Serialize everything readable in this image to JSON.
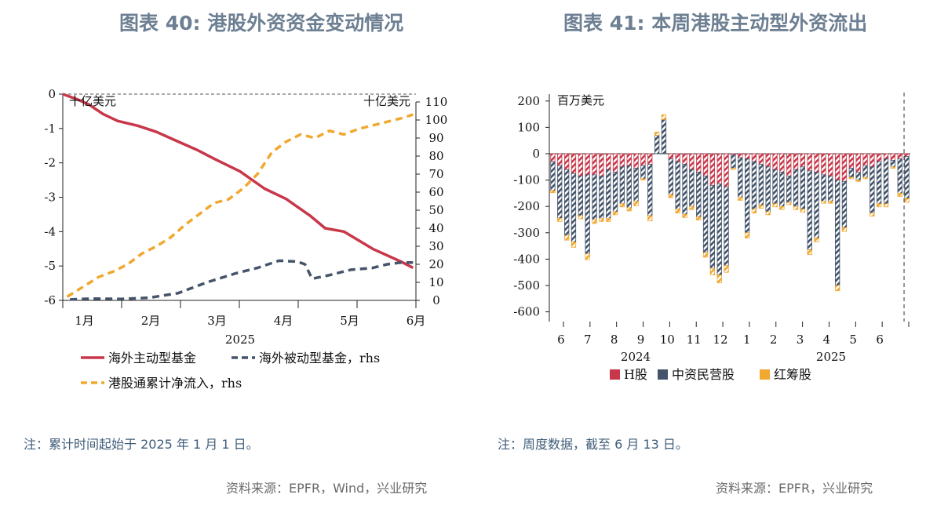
{
  "left": {
    "title": "图表 40: 港股外资资金变动情况",
    "note": "注：累计时间起始于 2025 年 1 月 1 日。",
    "source": "资料来源：EPFR，Wind，兴业研究",
    "chart_data": {
      "type": "line",
      "xlabel": "2025",
      "x_ticks": [
        "1月",
        "2月",
        "3月",
        "4月",
        "5月",
        "6月"
      ],
      "unit_left": "十亿美元",
      "unit_right": "十亿美元",
      "y_left_range": [
        -6,
        0
      ],
      "y_left_ticks": [
        "0",
        "-1",
        "-2",
        "-3",
        "-4",
        "-5",
        "-6"
      ],
      "y_right_range": [
        0,
        110
      ],
      "y_right_ticks": [
        "110",
        "100",
        "90",
        "80",
        "70",
        "60",
        "50",
        "40",
        "30",
        "20",
        "10",
        "0"
      ],
      "x_range": [
        0,
        24.5
      ],
      "series": [
        {
          "name": "海外主动型基金",
          "axis": "left",
          "color": "#c8374a",
          "dash": "solid",
          "x": [
            0,
            1,
            1.8,
            2.8,
            3.8,
            5.2,
            6.5,
            8,
            9.3,
            10.5,
            12.3,
            14,
            15.5,
            17.2,
            18.2,
            19.5,
            21.5,
            23.5,
            24.3
          ],
          "values": [
            0,
            -0.15,
            -0.3,
            -0.58,
            -0.78,
            -0.92,
            -1.1,
            -1.38,
            -1.62,
            -1.88,
            -2.25,
            -2.75,
            -3.05,
            -3.55,
            -3.9,
            -4.0,
            -4.5,
            -4.88,
            -5.05
          ]
        },
        {
          "name": "海外被动型基金，rhs",
          "axis": "right",
          "color": "#44546a",
          "dash": "dashed",
          "x": [
            0.5,
            2,
            4,
            6,
            8,
            10,
            12,
            13.5,
            15,
            16.3,
            16.8,
            17.3,
            18.5,
            20,
            21.5,
            22.5,
            23.5,
            24.3
          ],
          "values": [
            0.5,
            1,
            0.8,
            1.5,
            4,
            10,
            15,
            18,
            22,
            21.5,
            20,
            12,
            14,
            17,
            18,
            20,
            21,
            21
          ]
        },
        {
          "name": "港股通累计净流入，rhs",
          "axis": "right",
          "color": "#f0a830",
          "dash": "dashed",
          "x": [
            0.3,
            1.5,
            2.5,
            3.5,
            4.5,
            5.5,
            6.5,
            7.5,
            8.5,
            9.5,
            10.5,
            11.5,
            12.5,
            13.5,
            14.5,
            15.5,
            16.5,
            17.5,
            18.5,
            19.5,
            20.5,
            21.5,
            22.5,
            23.5,
            24.3
          ],
          "values": [
            2,
            8,
            13,
            16,
            20,
            26,
            30,
            35,
            42,
            48,
            54,
            56,
            62,
            70,
            82,
            88,
            92,
            90,
            94,
            92,
            95,
            97,
            99,
            101,
            103
          ]
        }
      ]
    }
  },
  "right": {
    "title": "图表 41: 本周港股主动型外资流出",
    "note": "注：周度数据，截至 6 月 13 日。",
    "source": "资料来源：EPFR，兴业研究",
    "chart_data": {
      "type": "bar",
      "stacked": true,
      "unit": "百万美元",
      "y_range": [
        -650,
        230
      ],
      "y_ticks": [
        "200",
        "100",
        "0",
        "-100",
        "-200",
        "-300",
        "-400",
        "-500",
        "-600"
      ],
      "x_ticks": [
        "6",
        "7",
        "8",
        "9",
        "10",
        "11",
        "12",
        "1",
        "2",
        "3",
        "4",
        "5",
        "6"
      ],
      "year_labels": [
        "2024",
        "2025"
      ],
      "series": [
        {
          "name": "H股",
          "color": "#c8374a",
          "values": [
            -30,
            -45,
            -60,
            -75,
            -85,
            -80,
            -80,
            -85,
            -60,
            -70,
            -50,
            -45,
            -55,
            -45,
            -40,
            0,
            0,
            -20,
            -30,
            -40,
            -60,
            -70,
            -85,
            -120,
            -115,
            -125,
            -5,
            -15,
            -20,
            -30,
            -40,
            -50,
            -60,
            -70,
            -85,
            -60,
            -50,
            -65,
            -70,
            -80,
            -85,
            -100,
            -105,
            -55,
            -70,
            -45,
            -50,
            -30,
            -20,
            -25,
            -20,
            -10
          ]
        },
        {
          "name": "中资民营股",
          "color": "#44546a",
          "values": [
            -110,
            -200,
            -250,
            -260,
            -150,
            -300,
            -170,
            -160,
            -185,
            -150,
            -140,
            -160,
            -125,
            -50,
            -195,
            70,
            130,
            -135,
            -180,
            -190,
            -140,
            -170,
            -290,
            -315,
            -345,
            -300,
            -50,
            -150,
            -280,
            -180,
            -155,
            -170,
            -130,
            -130,
            -100,
            -140,
            -160,
            -300,
            -250,
            -100,
            -95,
            -400,
            -175,
            -35,
            -30,
            -45,
            -175,
            -160,
            -170,
            -25,
            -130,
            -160
          ]
        },
        {
          "name": "红筹股",
          "color": "#f0a830",
          "values": [
            -8,
            -12,
            -18,
            -20,
            -12,
            -22,
            -15,
            -12,
            -12,
            -12,
            -12,
            -12,
            -18,
            -5,
            -20,
            12,
            18,
            -12,
            -15,
            -12,
            -12,
            -12,
            -18,
            -25,
            -30,
            -25,
            -5,
            -12,
            -20,
            -15,
            -12,
            -12,
            -12,
            -12,
            -8,
            -12,
            -12,
            -18,
            -15,
            -8,
            -8,
            -20,
            -15,
            -5,
            -5,
            -5,
            -12,
            -12,
            -12,
            -5,
            -12,
            -15
          ]
        }
      ]
    }
  }
}
